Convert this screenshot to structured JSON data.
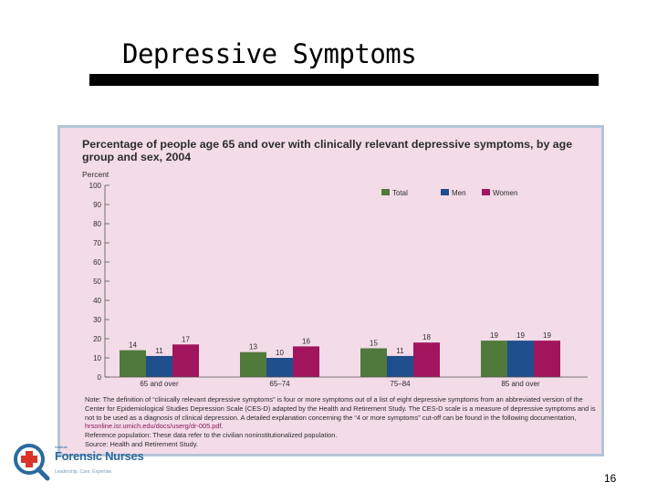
{
  "slide": {
    "title": "Depressive Symptoms",
    "page_number": "16"
  },
  "chart_data": {
    "type": "bar",
    "title": "Percentage of people age 65 and over with clinically relevant depressive symptoms, by age group and sex, 2004",
    "ylabel": "Percent",
    "ylim": [
      0,
      100
    ],
    "yticks": [
      "0",
      "10",
      "20",
      "30",
      "40",
      "50",
      "60",
      "70",
      "80",
      "90",
      "100"
    ],
    "categories": [
      "65 and over",
      "65–74",
      "75–84",
      "85 and over"
    ],
    "series": [
      {
        "name": "Total",
        "color": "#4f7a3c",
        "values": [
          14,
          13,
          15,
          19
        ]
      },
      {
        "name": "Men",
        "color": "#1f4e8c",
        "values": [
          11,
          10,
          11,
          19
        ]
      },
      {
        "name": "Women",
        "color": "#a0155e",
        "values": [
          17,
          16,
          18,
          19
        ]
      }
    ],
    "legend_position": "top-right",
    "grid": false
  },
  "notes": {
    "definition_before": "Note: The definition of “clinically relevant depressive symptoms” is four or more symptoms out of a list of eight depressive symptoms from an abbreviated version of the Center for Epidemiological Studies Depression Scale (CES-D) adapted by the Health and Retirement Study. The CES-D scale is a measure of depressive symptoms and is not to be used as a diagnosis of clinical depression. A detailed explanation concerning the “4 or more symptoms” cut-off can be found in the following documentation,",
    "definition_link": "hrsonline.isr.umich.edu/docs/userg/dr-005.pdf",
    "definition_after": ".",
    "reference": "Reference population: These data refer to the civilian noninstitutionalized population.",
    "source": "Source: Health and Retirement Study."
  },
  "logo": {
    "org_top": "Institute",
    "org_name": "Forensic Nurses",
    "tagline": "Leadership. Care. Expertise."
  },
  "colors": {
    "panel_background": "#f3dbe8",
    "panel_border": "#b3c6d6",
    "total": "#4f7a3c",
    "men": "#1f4e8c",
    "women": "#a0155e"
  }
}
